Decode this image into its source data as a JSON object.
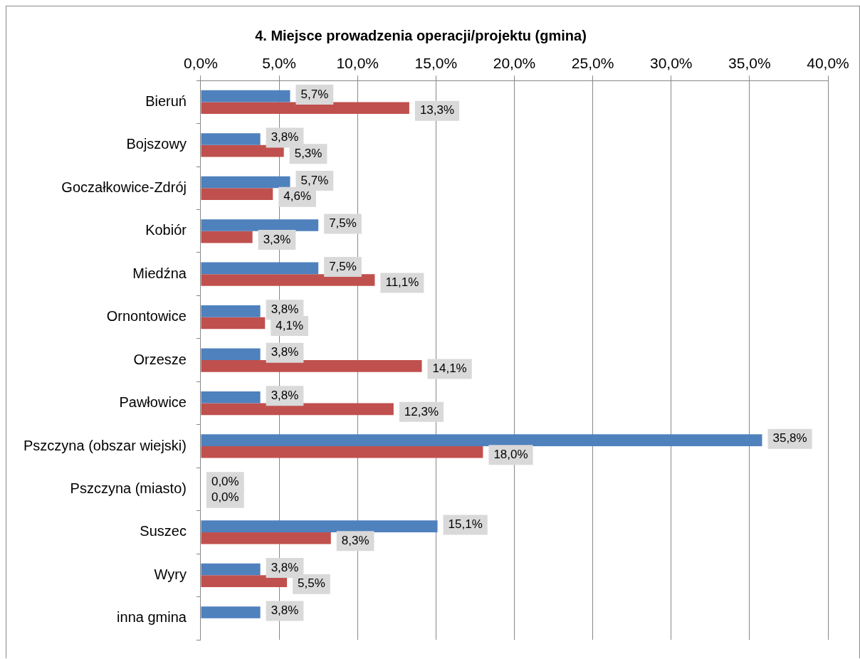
{
  "chart_data": {
    "type": "bar",
    "orientation": "horizontal",
    "title": "4. Miejsce prowadzenia operacji/projektu (gmina)",
    "categories": [
      "Bieruń",
      "Bojszowy",
      "Goczałkowice-Zdrój",
      "Kobiór",
      "Miedźna",
      "Ornontowice",
      "Orzesze",
      "Pawłowice",
      "Pszczyna (obszar wiejski)",
      "Pszczyna (miasto)",
      "Suszec",
      "Wyry",
      "inna gmina"
    ],
    "series": [
      {
        "color": "#4f81bd",
        "values": [
          5.7,
          3.8,
          5.7,
          7.5,
          7.5,
          3.8,
          3.8,
          3.8,
          35.8,
          0.0,
          15.1,
          3.8,
          3.8
        ],
        "value_labels": [
          "5,7%",
          "3,8%",
          "5,7%",
          "7,5%",
          "7,5%",
          "3,8%",
          "3,8%",
          "3,8%",
          "35,8%",
          "0,0%",
          "15,1%",
          "3,8%",
          "3,8%"
        ]
      },
      {
        "color": "#c0504d",
        "values": [
          13.3,
          5.3,
          4.6,
          3.3,
          11.1,
          4.1,
          14.1,
          12.3,
          18.0,
          0.0,
          8.3,
          5.5,
          null
        ],
        "value_labels": [
          "13,3%",
          "5,3%",
          "4,6%",
          "3,3%",
          "11,1%",
          "4,1%",
          "14,1%",
          "12,3%",
          "18,0%",
          "0,0%",
          "8,3%",
          "5,5%",
          null
        ]
      }
    ],
    "xlim": [
      0,
      40
    ],
    "xticks": [
      {
        "value": 0,
        "label": "0,0%"
      },
      {
        "value": 5,
        "label": "5,0%"
      },
      {
        "value": 10,
        "label": "10,0%"
      },
      {
        "value": 15,
        "label": "15,0%"
      },
      {
        "value": 20,
        "label": "20,0%"
      },
      {
        "value": 25,
        "label": "25,0%"
      },
      {
        "value": 30,
        "label": "30,0%"
      },
      {
        "value": 35,
        "label": "35,0%"
      },
      {
        "value": 40,
        "label": "40,0%"
      }
    ],
    "grid": true
  }
}
